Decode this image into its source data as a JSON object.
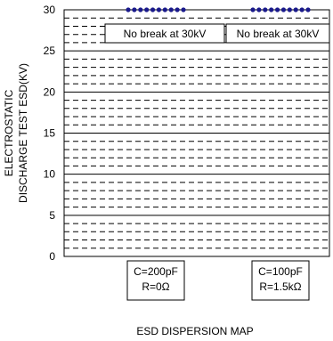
{
  "chart_data": {
    "type": "scatter",
    "title": "",
    "xlabel": "ESD DISPERSION MAP",
    "ylabel": [
      "ELECTROSTATIC",
      "DISCHARGE TEST ESD(KV)"
    ],
    "ylim": [
      0,
      30
    ],
    "yticks": [
      0,
      5,
      10,
      15,
      20,
      25,
      30
    ],
    "y_major_grid": [
      5,
      10,
      15,
      20,
      25
    ],
    "y_minor_grid_step": 1,
    "grid": true,
    "categories": [
      {
        "label_lines": [
          "C=200pF",
          "R=0Ω"
        ]
      },
      {
        "label_lines": [
          "C=100pF",
          "R=1.5kΩ"
        ]
      }
    ],
    "series": [
      {
        "category_index": 0,
        "values": [
          30,
          30,
          30,
          30,
          30,
          30,
          30,
          30,
          30,
          30
        ]
      },
      {
        "category_index": 1,
        "values": [
          30,
          30,
          30,
          30,
          30,
          30,
          30,
          30,
          30,
          30
        ]
      }
    ],
    "annotations": [
      "No break at 30kV",
      "No break at 30kV"
    ],
    "colors": {
      "points": "#1a1a8c",
      "grid": "#000000",
      "box_border": "#000000"
    }
  }
}
